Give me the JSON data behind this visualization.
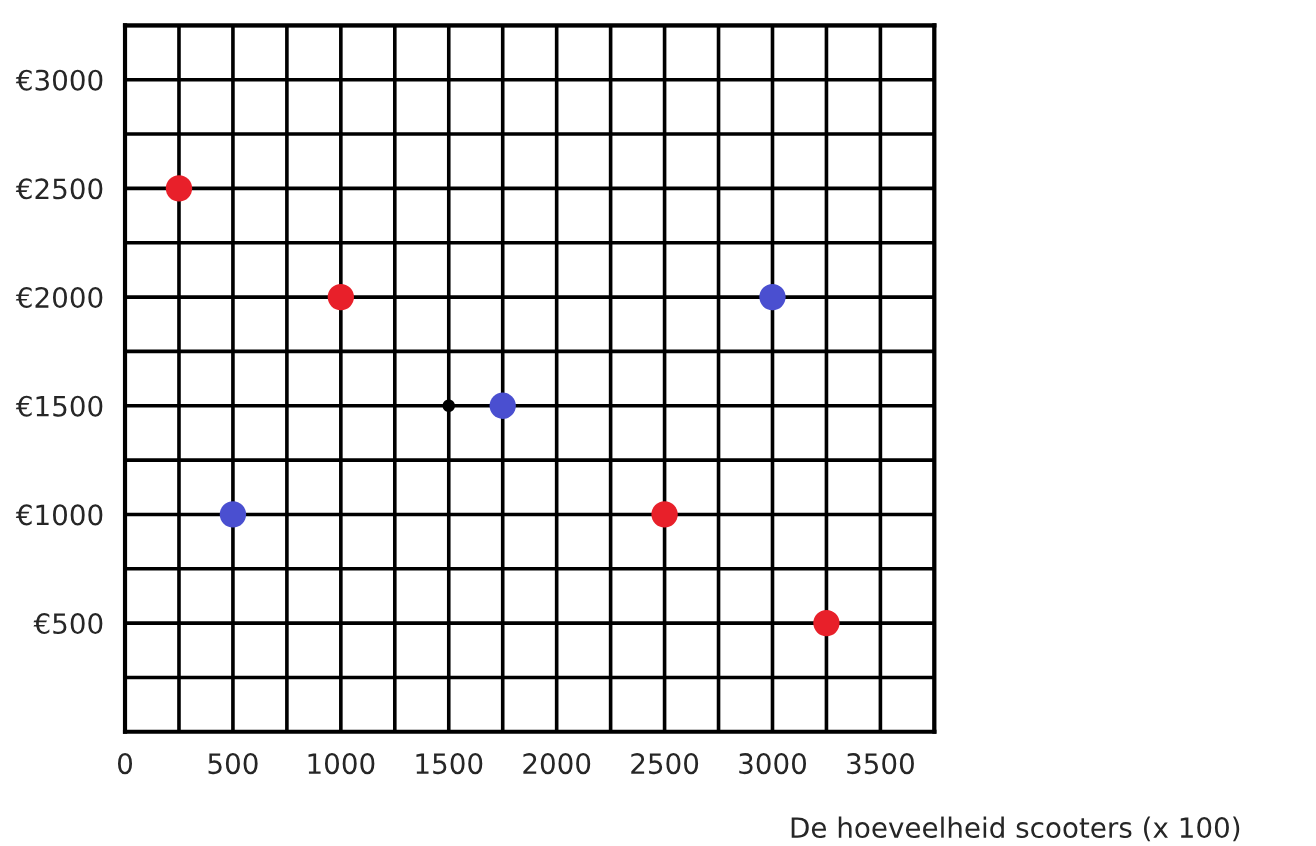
{
  "chart_data": {
    "type": "scatter",
    "xlabel": "De hoeveelheid scooters (x 100)",
    "series": [
      {
        "color": "#e8202a",
        "x": [
          250,
          1000,
          2500,
          3250
        ],
        "values": [
          2500,
          2000,
          1000,
          500
        ]
      },
      {
        "color": "#4a4fd0",
        "x": [
          500,
          1750,
          3000
        ],
        "values": [
          1000,
          1500,
          2000
        ]
      },
      {
        "color": "#000000",
        "x": [
          1500
        ],
        "values": [
          1500
        ]
      }
    ],
    "xlim": [
      0,
      3750
    ],
    "ylim": [
      0,
      3250
    ],
    "xticks": [
      {
        "value": 0,
        "label": "0"
      },
      {
        "value": 250,
        "label": null
      },
      500,
      {
        "value": 750,
        "label": null
      },
      1000,
      {
        "value": 1250,
        "label": null
      },
      1500,
      {
        "value": 1750,
        "label": null
      },
      2000,
      {
        "value": 2250,
        "label": null
      },
      2500,
      {
        "value": 2750,
        "label": null
      },
      3000,
      {
        "value": 3250,
        "label": null
      },
      3500,
      {
        "value": 3750,
        "label": null
      }
    ],
    "yticks": [
      {
        "value": 250,
        "label": null
      },
      {
        "value": 500,
        "label": "€500"
      },
      {
        "value": 750,
        "label": null
      },
      {
        "value": 1000,
        "label": "€1000"
      },
      {
        "value": 1250,
        "label": null
      },
      {
        "value": 1500,
        "label": "€1500"
      },
      {
        "value": 1750,
        "label": null
      },
      {
        "value": 2000,
        "label": "€2000"
      },
      {
        "value": 2250,
        "label": null
      },
      {
        "value": 2500,
        "label": "€2500"
      },
      {
        "value": 2750,
        "label": null
      },
      {
        "value": 3000,
        "label": "€3000"
      },
      {
        "value": 3250,
        "label": null
      }
    ],
    "grid": true,
    "marker": "circle"
  }
}
